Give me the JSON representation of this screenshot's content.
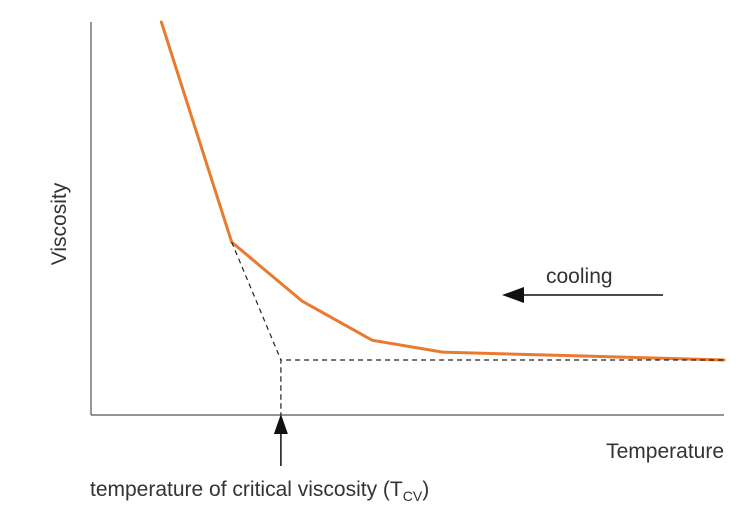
{
  "chart_data": {
    "type": "line",
    "title": "",
    "xlabel": "Temperature",
    "ylabel": "Viscosity",
    "grid": false,
    "legend": "none",
    "series": [
      {
        "values": [
          {
            "x": 1.0,
            "y": 10.0
          },
          {
            "x": 2.0,
            "y": 4.4
          },
          {
            "x": 3.0,
            "y": 2.9
          },
          {
            "x": 4.0,
            "y": 1.9
          },
          {
            "x": 5.0,
            "y": 1.6
          },
          {
            "x": 6.0,
            "y": 1.55
          },
          {
            "x": 7.0,
            "y": 1.5
          },
          {
            "x": 8.0,
            "y": 1.45
          },
          {
            "x": 9.0,
            "y": 1.4
          }
        ],
        "color": "#e97a2f"
      }
    ],
    "annotations": {
      "cooling_label": "cooling",
      "tcv_label_main": "temperature of critical viscosity (T",
      "tcv_label_sub": "CV",
      "tcv_label_close": ")",
      "tcv_x": 2.7
    },
    "xlim": [
      0,
      9
    ],
    "ylim": [
      0,
      10
    ],
    "colors": {
      "axis": "#555555",
      "text": "#333333",
      "guide": "#222222"
    }
  }
}
